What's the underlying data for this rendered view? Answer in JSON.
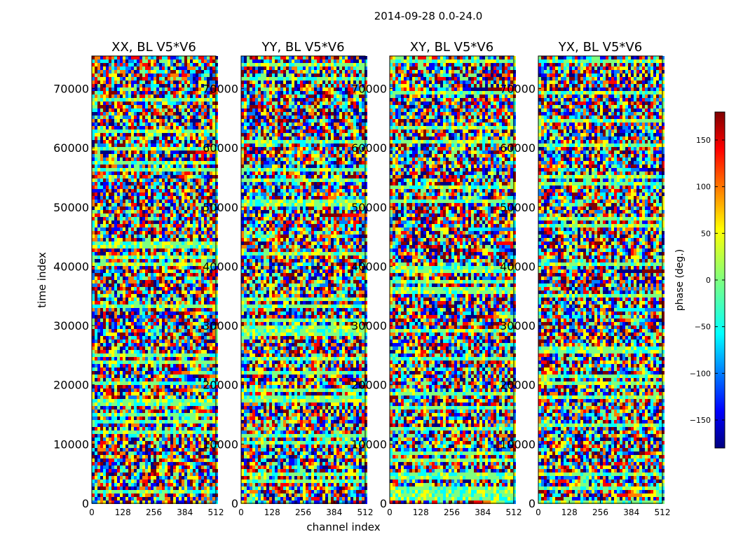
{
  "chart_data": {
    "type": "heatmap",
    "title": "2014-09-28 0.0-24.0",
    "xlabel": "channel index",
    "ylabel": "time index",
    "xlim": [
      0,
      512
    ],
    "ylim": [
      0,
      75500
    ],
    "x_ticks": [
      0,
      128,
      256,
      384,
      512
    ],
    "y_ticks": [
      0,
      10000,
      20000,
      30000,
      40000,
      50000,
      60000,
      70000
    ],
    "panels": [
      {
        "title": "XX, BL V5*V6",
        "polarization": "XX"
      },
      {
        "title": "YY, BL V5*V6",
        "polarization": "YY"
      },
      {
        "title": "XY, BL V5*V6",
        "polarization": "XY"
      },
      {
        "title": "YX, BL V5*V6",
        "polarization": "YX"
      }
    ],
    "colorbar": {
      "label": "phase (deg.)",
      "colormap": "jet",
      "range": [
        -180,
        180
      ],
      "ticks": [
        -150,
        -100,
        -50,
        0,
        50,
        100,
        150
      ]
    },
    "grid": false
  },
  "colors": {
    "jet": [
      "#00007f",
      "#0000ff",
      "#007fff",
      "#00ffff",
      "#7fff7f",
      "#ffff00",
      "#ff7f00",
      "#ff0000",
      "#7f0000"
    ]
  }
}
